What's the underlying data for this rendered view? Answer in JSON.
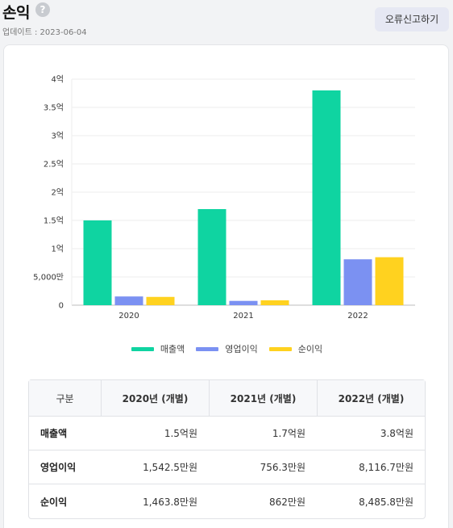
{
  "header": {
    "title": "손익",
    "help_glyph": "?",
    "update_label": "업데이트 : 2023-06-04",
    "report_button": "오류신고하기"
  },
  "colors": {
    "revenue": "#0fd4a1",
    "operating_profit": "#7b91f2",
    "net_income": "#ffd21f"
  },
  "chart_data": {
    "type": "bar",
    "categories": [
      "2020",
      "2021",
      "2022"
    ],
    "unit": "원",
    "series": [
      {
        "name": "매출액",
        "values": [
          150000000,
          170000000,
          380000000
        ]
      },
      {
        "name": "영업이익",
        "values": [
          15425000,
          7563000,
          81167000
        ]
      },
      {
        "name": "순이익",
        "values": [
          14638000,
          8620000,
          84858000
        ]
      }
    ],
    "ylim": [
      0,
      400000000
    ],
    "yticks": [
      0,
      50000000,
      100000000,
      150000000,
      200000000,
      250000000,
      300000000,
      350000000,
      400000000
    ],
    "ytick_labels": [
      "0",
      "5,000만",
      "1억",
      "1.5억",
      "2억",
      "2.5억",
      "3억",
      "3.5억",
      "4억"
    ],
    "grid": true,
    "legend": "bottom"
  },
  "table": {
    "headers": [
      "구분",
      "2020년 (개별)",
      "2021년 (개별)",
      "2022년 (개별)"
    ],
    "rows": [
      {
        "label": "매출액",
        "values": [
          "1.5억원",
          "1.7억원",
          "3.8억원"
        ]
      },
      {
        "label": "영업이익",
        "values": [
          "1,542.5만원",
          "756.3만원",
          "8,116.7만원"
        ]
      },
      {
        "label": "순이익",
        "values": [
          "1,463.8만원",
          "862만원",
          "8,485.8만원"
        ]
      }
    ]
  }
}
